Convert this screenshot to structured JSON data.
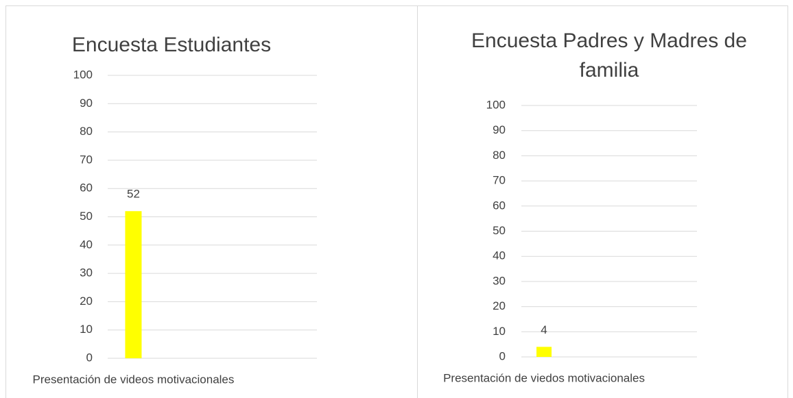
{
  "chart_data": [
    {
      "type": "bar",
      "title": "Encuesta Estudiantes",
      "categories": [
        "Presentación de videos motivacionales"
      ],
      "values": [
        52
      ],
      "color": "#ffff00",
      "ylim": [
        0,
        100
      ],
      "yticks": [
        0,
        10,
        20,
        30,
        40,
        50,
        60,
        70,
        80,
        90,
        100
      ],
      "grid": true
    },
    {
      "type": "bar",
      "title": "Encuesta Padres y Madres de familia",
      "categories": [
        "Presentación de viedos motivacionales"
      ],
      "values": [
        4
      ],
      "color": "#ffff00",
      "ylim": [
        0,
        100
      ],
      "yticks": [
        0,
        10,
        20,
        30,
        40,
        50,
        60,
        70,
        80,
        90,
        100
      ],
      "grid": true
    }
  ]
}
